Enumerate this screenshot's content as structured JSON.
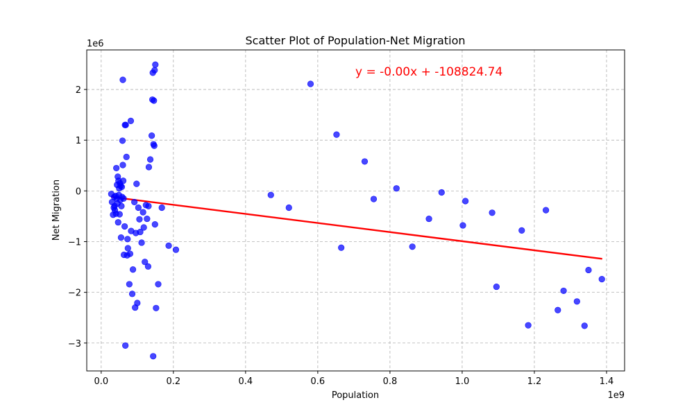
{
  "chart_data": {
    "type": "scatter",
    "title": "Scatter Plot of Population-Net Migration",
    "xlabel": "Population",
    "ylabel": "Net Migration",
    "x_scale_label": "1e9",
    "y_scale_label": "1e6",
    "xlim": [
      -0.04,
      1.45
    ],
    "ylim": [
      -3.55,
      2.78
    ],
    "xticks": [
      0.0,
      0.2,
      0.4,
      0.6,
      0.8,
      1.0,
      1.2,
      1.4
    ],
    "xtick_labels": [
      "0.0",
      "0.2",
      "0.4",
      "0.6",
      "0.8",
      "1.0",
      "1.2",
      "1.4"
    ],
    "yticks": [
      -3,
      -2,
      -1,
      0,
      1,
      2
    ],
    "ytick_labels": [
      "−3",
      "−2",
      "−1",
      "0",
      "1",
      "2"
    ],
    "grid": true,
    "point_color": "#0000ff",
    "trend_color": "#ff0000",
    "trendline": {
      "equation": "y = -0.00x + -108824.74",
      "x": [
        0.028,
        1.388
      ],
      "y": [
        -0.12,
        -1.34
      ]
    },
    "series": [
      {
        "values": [
          {
            "x": 0.028,
            "y": -0.06
          },
          {
            "x": 0.03,
            "y": -0.22
          },
          {
            "x": 0.033,
            "y": -0.47
          },
          {
            "x": 0.035,
            "y": -0.33
          },
          {
            "x": 0.036,
            "y": -0.12
          },
          {
            "x": 0.037,
            "y": -0.3
          },
          {
            "x": 0.038,
            "y": -0.38
          },
          {
            "x": 0.04,
            "y": -0.1
          },
          {
            "x": 0.041,
            "y": -0.45
          },
          {
            "x": 0.042,
            "y": 0.45
          },
          {
            "x": 0.043,
            "y": -0.15
          },
          {
            "x": 0.044,
            "y": 0.12
          },
          {
            "x": 0.045,
            "y": -0.25
          },
          {
            "x": 0.046,
            "y": 0.28
          },
          {
            "x": 0.047,
            "y": -0.62
          },
          {
            "x": 0.048,
            "y": 0.2
          },
          {
            "x": 0.049,
            "y": -0.08
          },
          {
            "x": 0.05,
            "y": 0.05
          },
          {
            "x": 0.051,
            "y": -0.46
          },
          {
            "x": 0.052,
            "y": 0.15
          },
          {
            "x": 0.053,
            "y": -0.18
          },
          {
            "x": 0.054,
            "y": 0.1
          },
          {
            "x": 0.055,
            "y": -0.92
          },
          {
            "x": 0.056,
            "y": -0.3
          },
          {
            "x": 0.057,
            "y": 0.08
          },
          {
            "x": 0.058,
            "y": -0.12
          },
          {
            "x": 0.059,
            "y": 0.99
          },
          {
            "x": 0.06,
            "y": 0.51
          },
          {
            "x": 0.06,
            "y": 2.19
          },
          {
            "x": 0.061,
            "y": 0.2
          },
          {
            "x": 0.062,
            "y": -0.15
          },
          {
            "x": 0.063,
            "y": -1.26
          },
          {
            "x": 0.065,
            "y": -0.7
          },
          {
            "x": 0.066,
            "y": 1.3
          },
          {
            "x": 0.067,
            "y": -3.05
          },
          {
            "x": 0.068,
            "y": 1.3
          },
          {
            "x": 0.07,
            "y": 0.67
          },
          {
            "x": 0.072,
            "y": -1.27
          },
          {
            "x": 0.073,
            "y": -0.95
          },
          {
            "x": 0.074,
            "y": -1.13
          },
          {
            "x": 0.078,
            "y": -1.84
          },
          {
            "x": 0.08,
            "y": -1.24
          },
          {
            "x": 0.082,
            "y": 1.38
          },
          {
            "x": 0.083,
            "y": -0.79
          },
          {
            "x": 0.086,
            "y": -2.03
          },
          {
            "x": 0.088,
            "y": -1.55
          },
          {
            "x": 0.092,
            "y": -0.22
          },
          {
            "x": 0.094,
            "y": -2.3
          },
          {
            "x": 0.096,
            "y": -0.83
          },
          {
            "x": 0.098,
            "y": 0.14
          },
          {
            "x": 0.1,
            "y": -2.21
          },
          {
            "x": 0.103,
            "y": -0.33
          },
          {
            "x": 0.106,
            "y": -0.56
          },
          {
            "x": 0.108,
            "y": -0.81
          },
          {
            "x": 0.112,
            "y": -1.02
          },
          {
            "x": 0.116,
            "y": -0.42
          },
          {
            "x": 0.118,
            "y": -0.72
          },
          {
            "x": 0.121,
            "y": -1.4
          },
          {
            "x": 0.124,
            "y": -0.28
          },
          {
            "x": 0.127,
            "y": -0.55
          },
          {
            "x": 0.13,
            "y": -1.49
          },
          {
            "x": 0.131,
            "y": -0.3
          },
          {
            "x": 0.132,
            "y": 0.47
          },
          {
            "x": 0.136,
            "y": 0.62
          },
          {
            "x": 0.14,
            "y": 1.09
          },
          {
            "x": 0.142,
            "y": 1.8
          },
          {
            "x": 0.143,
            "y": 2.33
          },
          {
            "x": 0.144,
            "y": -3.26
          },
          {
            "x": 0.145,
            "y": 0.92
          },
          {
            "x": 0.146,
            "y": 1.78
          },
          {
            "x": 0.147,
            "y": 0.89
          },
          {
            "x": 0.148,
            "y": 2.38
          },
          {
            "x": 0.149,
            "y": -0.66
          },
          {
            "x": 0.15,
            "y": 2.49
          },
          {
            "x": 0.152,
            "y": -2.31
          },
          {
            "x": 0.158,
            "y": -1.84
          },
          {
            "x": 0.168,
            "y": -0.33
          },
          {
            "x": 0.187,
            "y": -1.08
          },
          {
            "x": 0.207,
            "y": -1.16
          },
          {
            "x": 0.47,
            "y": -0.08
          },
          {
            "x": 0.52,
            "y": -0.33
          },
          {
            "x": 0.58,
            "y": 2.11
          },
          {
            "x": 0.652,
            "y": 1.11
          },
          {
            "x": 0.665,
            "y": -1.12
          },
          {
            "x": 0.73,
            "y": 0.58
          },
          {
            "x": 0.755,
            "y": -0.16
          },
          {
            "x": 0.818,
            "y": 0.05
          },
          {
            "x": 0.862,
            "y": -1.1
          },
          {
            "x": 0.908,
            "y": -0.55
          },
          {
            "x": 0.943,
            "y": -0.03
          },
          {
            "x": 1.002,
            "y": -0.68
          },
          {
            "x": 1.009,
            "y": -0.2
          },
          {
            "x": 1.083,
            "y": -0.43
          },
          {
            "x": 1.095,
            "y": -1.89
          },
          {
            "x": 1.165,
            "y": -0.78
          },
          {
            "x": 1.183,
            "y": -2.65
          },
          {
            "x": 1.232,
            "y": -0.38
          },
          {
            "x": 1.265,
            "y": -2.35
          },
          {
            "x": 1.281,
            "y": -1.97
          },
          {
            "x": 1.318,
            "y": -2.18
          },
          {
            "x": 1.339,
            "y": -2.66
          },
          {
            "x": 1.35,
            "y": -1.56
          },
          {
            "x": 1.387,
            "y": -1.74
          }
        ]
      }
    ]
  }
}
